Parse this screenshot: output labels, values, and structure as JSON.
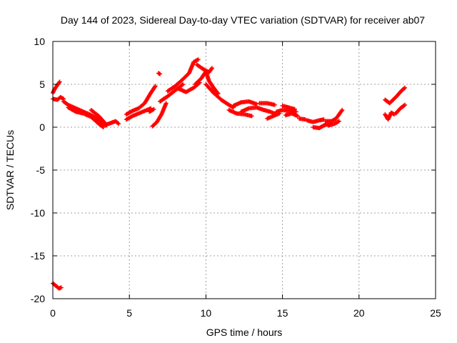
{
  "chart_data": {
    "type": "scatter",
    "title": "Day 144 of 2023, Sidereal Day-to-day VTEC variation (SDTVAR) for receiver ab07",
    "xlabel": "GPS time / hours",
    "ylabel": "SDTVAR / TECUs",
    "xlim": [
      0,
      25
    ],
    "ylim": [
      -20,
      10
    ],
    "xticks": [
      0,
      5,
      10,
      15,
      20,
      25
    ],
    "yticks": [
      -20,
      -15,
      -10,
      -5,
      0,
      5,
      10
    ],
    "grid": true,
    "marker": "+",
    "color": "#ff0000",
    "series": [
      {
        "name": "SDTVAR",
        "segments": [
          [
            [
              0.0,
              -18.2
            ],
            [
              0.2,
              -18.5
            ],
            [
              0.4,
              -18.8
            ],
            [
              0.55,
              -18.7
            ]
          ],
          [
            [
              0.0,
              4.0
            ],
            [
              0.1,
              4.4
            ],
            [
              0.25,
              4.8
            ],
            [
              0.45,
              5.3
            ]
          ],
          [
            [
              0.0,
              3.3
            ],
            [
              0.3,
              3.2
            ],
            [
              0.5,
              3.5
            ],
            [
              0.7,
              3.3
            ]
          ],
          [
            [
              0.7,
              3.0
            ],
            [
              1.0,
              2.6
            ],
            [
              1.5,
              2.2
            ],
            [
              2.0,
              1.8
            ],
            [
              2.4,
              1.5
            ],
            [
              2.8,
              1.1
            ],
            [
              3.2,
              0.6
            ],
            [
              3.5,
              0.2
            ]
          ],
          [
            [
              1.0,
              2.3
            ],
            [
              1.5,
              1.8
            ],
            [
              2.0,
              1.6
            ],
            [
              2.5,
              1.2
            ],
            [
              3.0,
              0.4
            ],
            [
              3.3,
              0.0
            ]
          ],
          [
            [
              2.5,
              2.0
            ],
            [
              3.0,
              1.3
            ],
            [
              3.4,
              0.5
            ]
          ],
          [
            [
              3.5,
              0.3
            ],
            [
              3.8,
              0.5
            ],
            [
              4.1,
              0.7
            ],
            [
              4.3,
              0.4
            ]
          ],
          [
            [
              4.8,
              0.9
            ],
            [
              5.2,
              1.3
            ],
            [
              5.6,
              1.6
            ],
            [
              6.0,
              1.9
            ],
            [
              6.4,
              2.2
            ]
          ],
          [
            [
              4.8,
              1.5
            ],
            [
              5.2,
              1.9
            ],
            [
              5.6,
              2.2
            ],
            [
              6.0,
              2.8
            ],
            [
              6.4,
              4.0
            ],
            [
              6.7,
              4.8
            ]
          ],
          [
            [
              6.3,
              1.8
            ],
            [
              6.6,
              2.1
            ]
          ],
          [
            [
              6.5,
              0.1
            ],
            [
              6.8,
              0.6
            ],
            [
              7.1,
              1.5
            ],
            [
              7.4,
              2.8
            ]
          ],
          [
            [
              6.9,
              6.3
            ],
            [
              7.0,
              6.2
            ]
          ],
          [
            [
              7.0,
              3.0
            ],
            [
              7.5,
              3.6
            ],
            [
              8.0,
              4.3
            ],
            [
              8.5,
              5.0
            ]
          ],
          [
            [
              7.5,
              4.2
            ],
            [
              8.0,
              4.8
            ],
            [
              8.5,
              5.6
            ],
            [
              8.9,
              6.3
            ],
            [
              9.2,
              7.6
            ],
            [
              9.5,
              7.9
            ]
          ],
          [
            [
              8.2,
              4.5
            ],
            [
              8.7,
              4.1
            ],
            [
              9.2,
              4.6
            ],
            [
              9.6,
              5.2
            ]
          ],
          [
            [
              9.4,
              7.3
            ],
            [
              9.8,
              6.8
            ],
            [
              10.2,
              6.4
            ],
            [
              10.4,
              6.9
            ]
          ],
          [
            [
              9.3,
              5.0
            ],
            [
              9.7,
              5.7
            ],
            [
              10.0,
              6.5
            ],
            [
              10.2,
              5.4
            ],
            [
              10.5,
              4.6
            ],
            [
              10.8,
              3.9
            ]
          ],
          [
            [
              10.0,
              5.0
            ],
            [
              10.5,
              4.0
            ],
            [
              11.0,
              3.2
            ],
            [
              11.5,
              2.6
            ],
            [
              11.8,
              2.3
            ]
          ],
          [
            [
              11.5,
              2.0
            ],
            [
              12.0,
              1.6
            ],
            [
              12.5,
              1.5
            ],
            [
              13.0,
              1.3
            ]
          ],
          [
            [
              11.8,
              2.5
            ],
            [
              12.3,
              2.9
            ],
            [
              12.8,
              3.0
            ],
            [
              13.3,
              2.7
            ]
          ],
          [
            [
              12.3,
              1.8
            ],
            [
              12.8,
              2.2
            ],
            [
              13.3,
              2.3
            ],
            [
              13.8,
              2.0
            ]
          ],
          [
            [
              13.5,
              2.8
            ],
            [
              14.0,
              2.8
            ],
            [
              14.5,
              2.6
            ]
          ],
          [
            [
              13.8,
              2.0
            ],
            [
              14.2,
              1.8
            ],
            [
              14.6,
              1.5
            ]
          ],
          [
            [
              14.0,
              1.0
            ],
            [
              14.4,
              1.3
            ],
            [
              14.8,
              1.6
            ]
          ],
          [
            [
              14.6,
              1.8
            ],
            [
              15.0,
              2.0
            ],
            [
              15.5,
              1.9
            ],
            [
              15.9,
              1.8
            ]
          ],
          [
            [
              15.0,
              2.5
            ],
            [
              15.4,
              2.3
            ],
            [
              15.8,
              2.1
            ]
          ],
          [
            [
              15.2,
              1.4
            ],
            [
              15.6,
              1.6
            ],
            [
              16.0,
              1.3
            ]
          ],
          [
            [
              16.1,
              1.0
            ],
            [
              16.5,
              0.9
            ]
          ],
          [
            [
              16.6,
              0.8
            ],
            [
              17.0,
              0.6
            ],
            [
              17.4,
              0.8
            ],
            [
              17.7,
              0.9
            ]
          ],
          [
            [
              17.0,
              0.0
            ],
            [
              17.4,
              -0.1
            ],
            [
              17.8,
              0.3
            ],
            [
              18.1,
              0.3
            ]
          ],
          [
            [
              17.8,
              0.7
            ],
            [
              18.2,
              0.7
            ],
            [
              18.5,
              1.0
            ],
            [
              18.9,
              2.0
            ]
          ],
          [
            [
              18.0,
              0.2
            ],
            [
              18.4,
              0.4
            ],
            [
              18.7,
              0.7
            ]
          ],
          [
            [
              21.7,
              3.2
            ],
            [
              22.0,
              2.8
            ],
            [
              22.4,
              3.5
            ],
            [
              22.8,
              4.3
            ],
            [
              23.0,
              4.6
            ]
          ],
          [
            [
              21.7,
              1.5
            ],
            [
              21.9,
              0.9
            ],
            [
              22.1,
              1.7
            ],
            [
              22.3,
              1.5
            ]
          ],
          [
            [
              22.4,
              1.6
            ],
            [
              22.7,
              2.2
            ],
            [
              23.0,
              2.6
            ]
          ]
        ]
      }
    ]
  }
}
